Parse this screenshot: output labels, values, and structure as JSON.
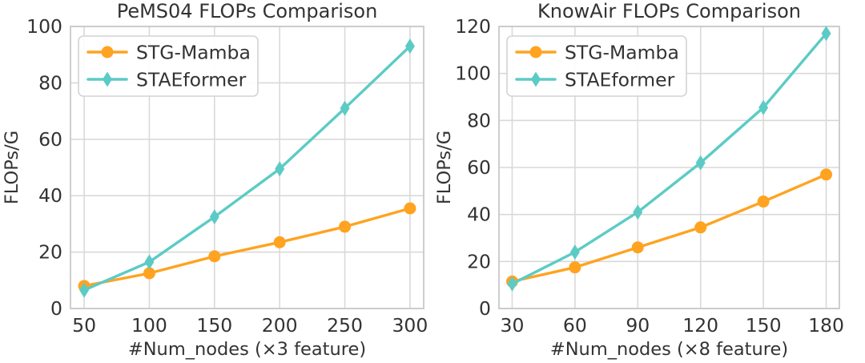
{
  "style": {
    "background": "#ffffff",
    "grid_color": "#d9d9d9",
    "spine_color": "#c9c9c9",
    "text_color": "#333333",
    "legend_border_color": "#d4d4d4",
    "legend_background": "#ffffff",
    "stg_mamba_color": "#FFA320",
    "staeformer_color": "#5CCBC5"
  },
  "chart_data": [
    {
      "type": "line",
      "title": "PeMS04 FLOPs Comparison",
      "xlabel": "#Num_nodes (×3 feature)",
      "ylabel": "FLOPs/G",
      "x": [
        50,
        100,
        150,
        200,
        250,
        300
      ],
      "xticks": [
        50,
        100,
        150,
        200,
        250,
        300
      ],
      "yticks": [
        0,
        20,
        40,
        60,
        80,
        100
      ],
      "ylim": [
        0,
        100
      ],
      "grid": true,
      "legend_position": "upper-left",
      "series": [
        {
          "name": "STG-Mamba",
          "color": "#FFA320",
          "marker": "circle",
          "values": [
            8,
            12.5,
            18.5,
            23.5,
            29,
            35.5
          ]
        },
        {
          "name": "STAEformer",
          "color": "#5CCBC5",
          "marker": "diamond",
          "values": [
            6.5,
            16.5,
            32.5,
            49.5,
            71,
            93
          ]
        }
      ]
    },
    {
      "type": "line",
      "title": "KnowAir FLOPs Comparison",
      "xlabel": "#Num_nodes (×8 feature)",
      "ylabel": "FLOPs/G",
      "x": [
        30,
        60,
        90,
        120,
        150,
        180
      ],
      "xticks": [
        30,
        60,
        90,
        120,
        150,
        180
      ],
      "yticks": [
        0,
        20,
        40,
        60,
        80,
        100,
        120
      ],
      "ylim": [
        0,
        120
      ],
      "grid": true,
      "legend_position": "upper-left",
      "series": [
        {
          "name": "STG-Mamba",
          "color": "#FFA320",
          "marker": "circle",
          "values": [
            11.5,
            17.5,
            26,
            34.5,
            45.5,
            57
          ]
        },
        {
          "name": "STAEformer",
          "color": "#5CCBC5",
          "marker": "diamond",
          "values": [
            10.5,
            24,
            41,
            62,
            85.5,
            117
          ]
        }
      ]
    }
  ]
}
